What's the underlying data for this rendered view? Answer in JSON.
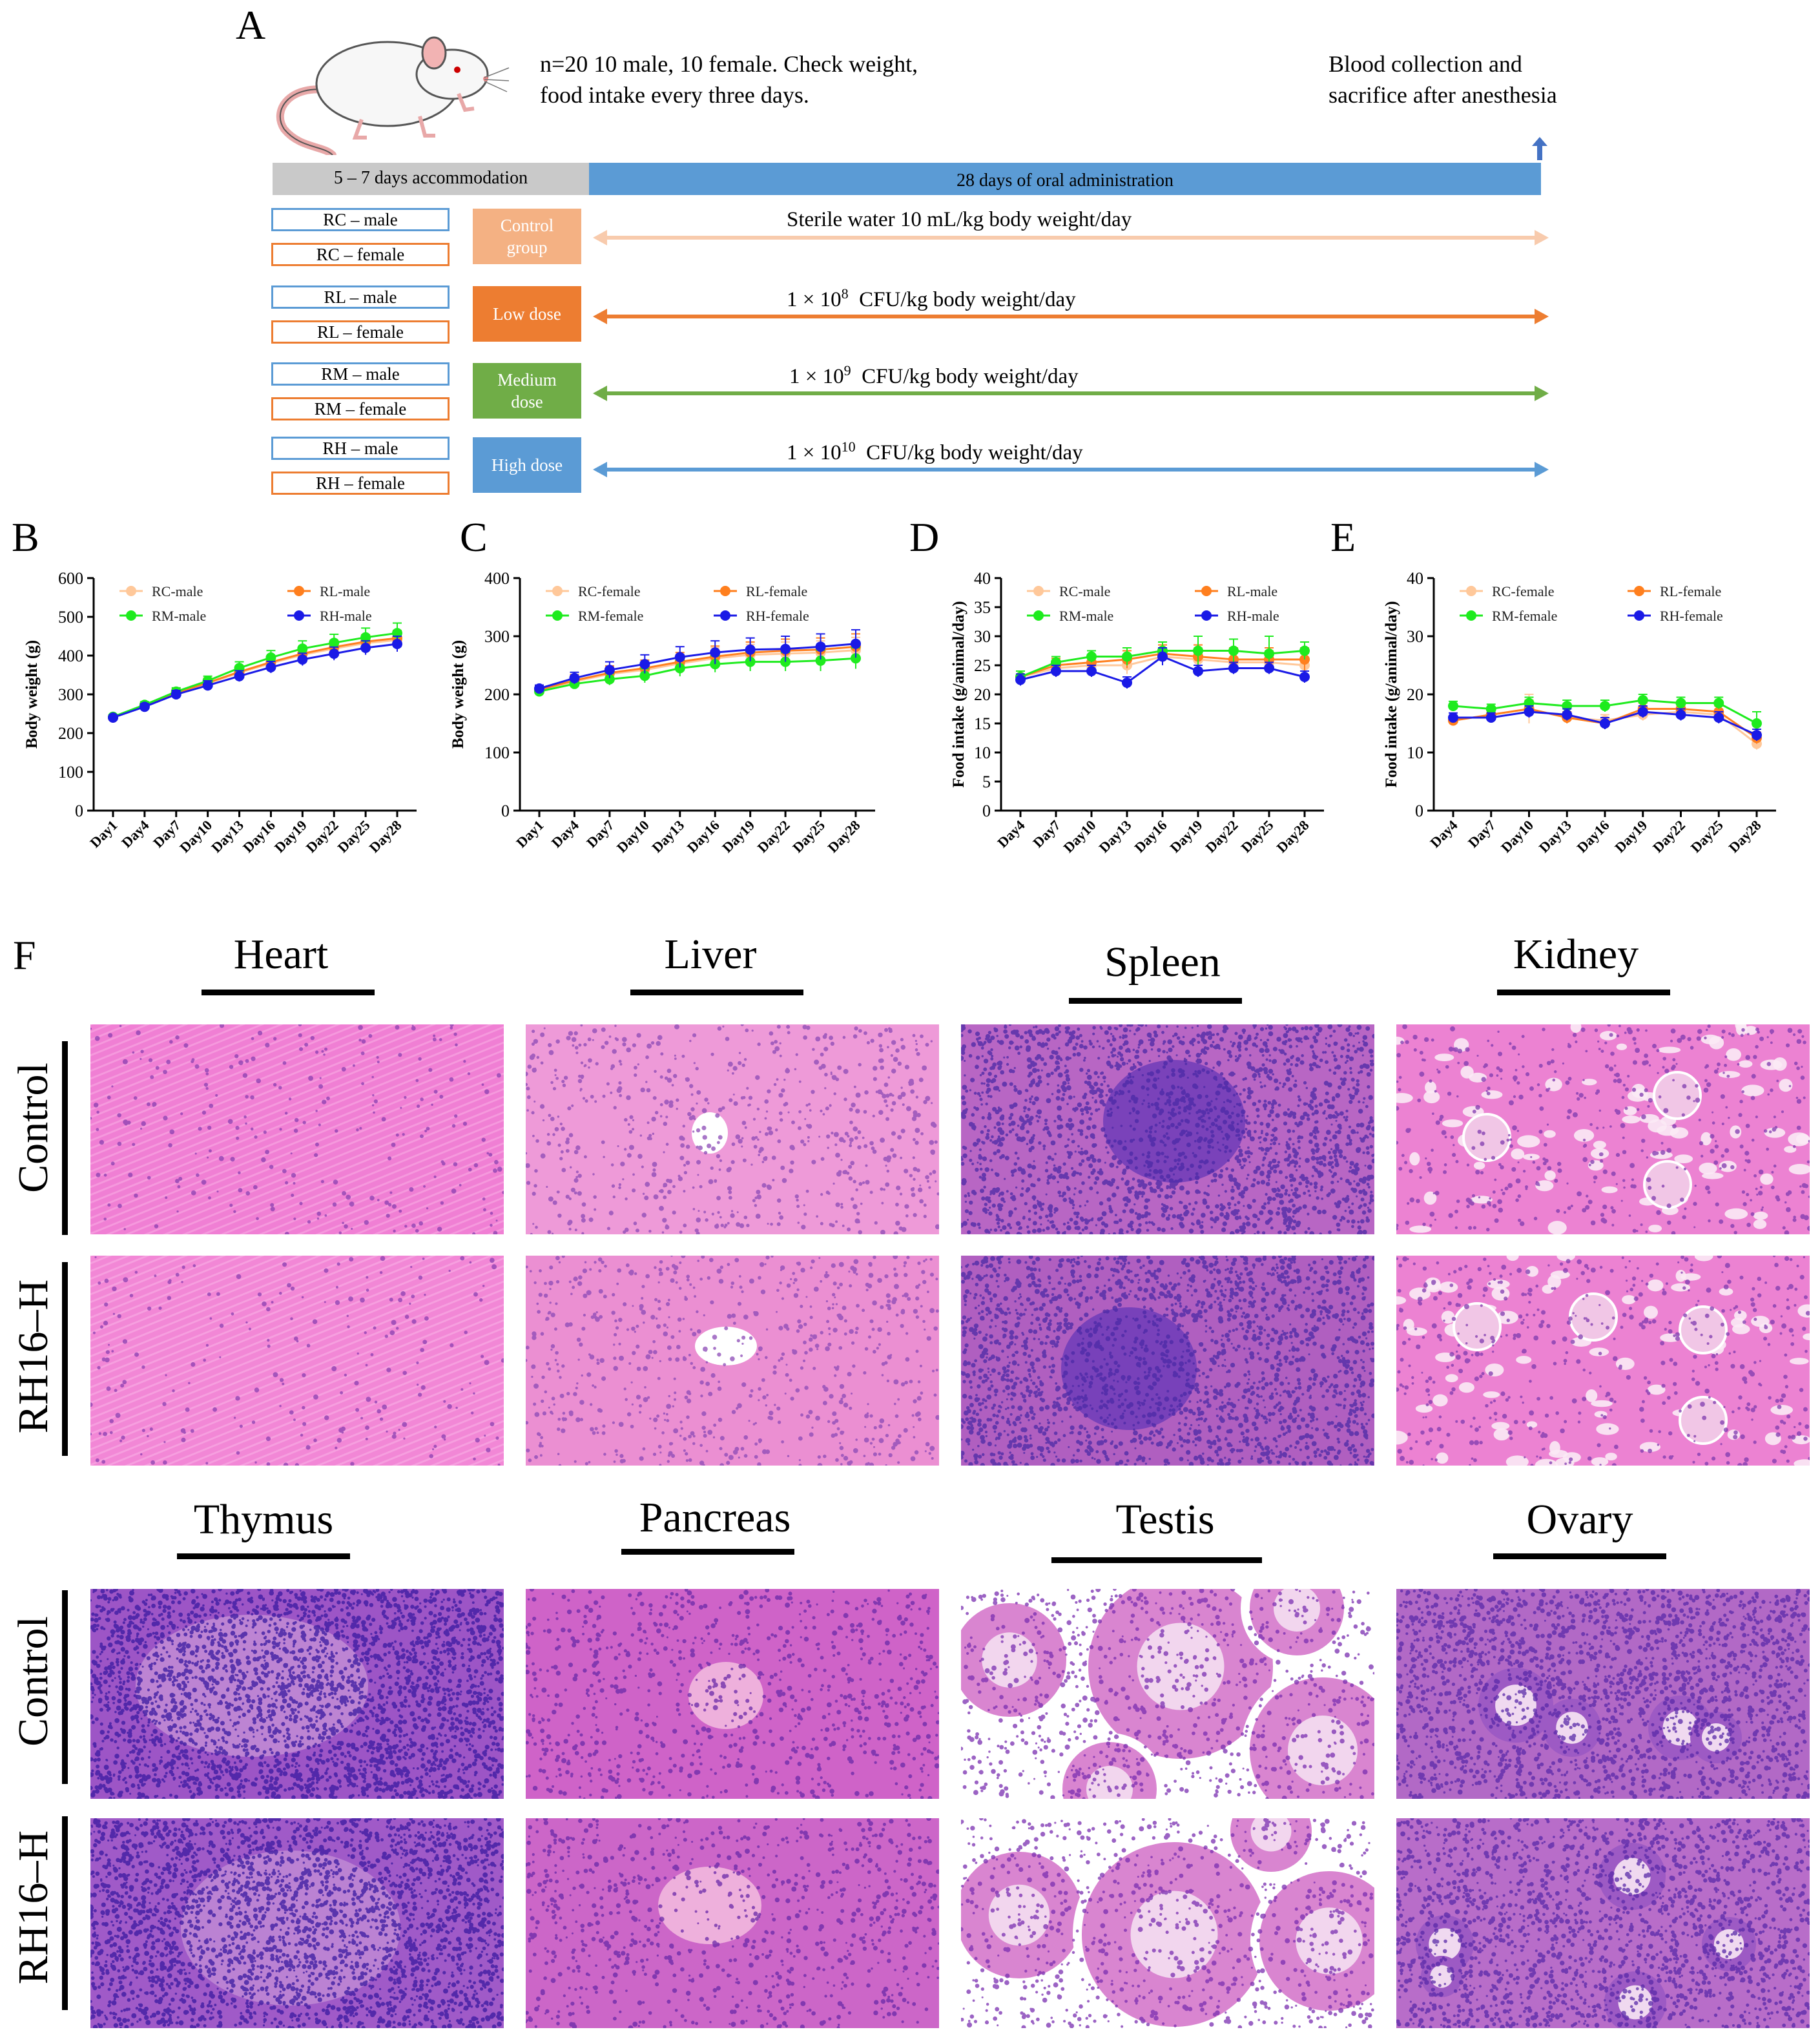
{
  "panel_labels": {
    "a": "A",
    "b": "B",
    "c": "C",
    "d": "D",
    "e": "E",
    "f": "F"
  },
  "schematic": {
    "study_note_line1": "n=20  10 male, 10 female. Check weight,",
    "study_note_line2": "food intake every three days.",
    "endpoint_line1": "Blood collection and",
    "endpoint_line2": "sacrifice after anesthesia",
    "phase_accommodation": "5 – 7 days  accommodation",
    "phase_administration": "28 days  of oral administration",
    "groups": [
      {
        "male": "RC – male",
        "female": "RC – female",
        "group_line1": "Control",
        "group_line2": "group",
        "color": "#F4B183",
        "dose": "Sterile water 10 mL/kg body weight/day",
        "dose_exp": ""
      },
      {
        "male": "RL – male",
        "female": "RL – female",
        "group_line1": "Low dose",
        "group_line2": "",
        "color": "#ED7D31",
        "dose": "1 × 10",
        "dose_exp": "8",
        "dose_suffix": "  CFU/kg body weight/day"
      },
      {
        "male": "RM – male",
        "female": "RM – female",
        "group_line1": "Medium",
        "group_line2": "dose",
        "color": "#70AD47",
        "dose": "1 × 10",
        "dose_exp": "9",
        "dose_suffix": "  CFU/kg body weight/day"
      },
      {
        "male": "RH – male",
        "female": "RH – female",
        "group_line1": "High dose",
        "group_line2": "",
        "color": "#5B9BD5",
        "dose": "1 × 10",
        "dose_exp": "10",
        "dose_suffix": "  CFU/kg body weight/day"
      }
    ],
    "colors": {
      "male_border": "#5B9BD5",
      "female_border": "#ED7D31",
      "accommodation_bar": "#C9C9C9",
      "administration_bar": "#5B9BD5",
      "arrow_up": "#4472C4"
    }
  },
  "series_colors": {
    "RC": "#FFC89A",
    "RL": "#FF7F1E",
    "RM": "#1EEB1E",
    "RH": "#1A1AE6"
  },
  "chart_data": [
    {
      "panel": "B",
      "type": "line",
      "ylabel": "Body weight (g)",
      "ylim": [
        0,
        600
      ],
      "yticks": [
        0,
        100,
        200,
        300,
        400,
        500,
        600
      ],
      "categories": [
        "Day1",
        "Day4",
        "Day7",
        "Day10",
        "Day13",
        "Day16",
        "Day19",
        "Day22",
        "Day25",
        "Day28"
      ],
      "legend": [
        "RC-male",
        "RL-male",
        "RM-male",
        "RH-male"
      ],
      "series": [
        {
          "name": "RC-male",
          "values": [
            240,
            270,
            303,
            328,
            356,
            380,
            402,
            418,
            432,
            440
          ],
          "err": [
            6,
            8,
            10,
            12,
            14,
            15,
            16,
            17,
            18,
            20
          ]
        },
        {
          "name": "RL-male",
          "values": [
            241,
            271,
            304,
            330,
            358,
            383,
            405,
            422,
            436,
            445
          ],
          "err": [
            6,
            8,
            10,
            12,
            14,
            15,
            16,
            17,
            18,
            20
          ]
        },
        {
          "name": "RM-male",
          "values": [
            242,
            273,
            307,
            335,
            368,
            395,
            418,
            433,
            447,
            458
          ],
          "err": [
            6,
            8,
            10,
            12,
            16,
            18,
            20,
            22,
            24,
            26
          ]
        },
        {
          "name": "RH-male",
          "values": [
            240,
            268,
            300,
            323,
            347,
            370,
            390,
            405,
            420,
            430
          ],
          "err": [
            6,
            8,
            10,
            12,
            14,
            15,
            16,
            17,
            18,
            20
          ]
        }
      ]
    },
    {
      "panel": "C",
      "type": "line",
      "ylabel": "Body weight (g)",
      "ylim": [
        0,
        400
      ],
      "yticks": [
        0,
        100,
        200,
        300,
        400
      ],
      "categories": [
        "Day1",
        "Day4",
        "Day7",
        "Day10",
        "Day13",
        "Day16",
        "Day19",
        "Day22",
        "Day25",
        "Day28"
      ],
      "legend": [
        "RC-female",
        "RL-female",
        "RM-female",
        "RH-female"
      ],
      "series": [
        {
          "name": "RC-female",
          "values": [
            207,
            222,
            235,
            242,
            253,
            262,
            268,
            270,
            272,
            276
          ],
          "err": [
            6,
            10,
            12,
            14,
            16,
            18,
            18,
            20,
            20,
            22
          ]
        },
        {
          "name": "RL-female",
          "values": [
            208,
            224,
            237,
            245,
            256,
            265,
            272,
            275,
            277,
            282
          ],
          "err": [
            6,
            10,
            12,
            14,
            16,
            18,
            18,
            20,
            20,
            22
          ]
        },
        {
          "name": "RM-female",
          "values": [
            205,
            218,
            226,
            232,
            245,
            252,
            256,
            256,
            258,
            262
          ],
          "err": [
            6,
            8,
            10,
            12,
            14,
            14,
            16,
            16,
            18,
            18
          ]
        },
        {
          "name": "RH-female",
          "values": [
            210,
            228,
            242,
            252,
            264,
            272,
            277,
            278,
            282,
            287
          ],
          "err": [
            6,
            10,
            14,
            16,
            18,
            20,
            20,
            22,
            22,
            24
          ]
        }
      ]
    },
    {
      "panel": "D",
      "type": "line",
      "ylabel": "Food intake (g/animal/day)",
      "ylim": [
        0,
        40
      ],
      "yticks": [
        0,
        5,
        10,
        15,
        20,
        25,
        30,
        35,
        40
      ],
      "categories": [
        "Day4",
        "Day7",
        "Day10",
        "Day13",
        "Day16",
        "Day19",
        "Day22",
        "Day25",
        "Day28"
      ],
      "legend": [
        "RC-male",
        "RL-male",
        "RM-male",
        "RH-male"
      ],
      "series": [
        {
          "name": "RC-male",
          "values": [
            23,
            24.5,
            25,
            25,
            26.5,
            26,
            25.5,
            25.5,
            25
          ],
          "err": [
            1,
            1.2,
            1.2,
            1.5,
            1.5,
            2,
            2,
            2,
            2
          ]
        },
        {
          "name": "RL-male",
          "values": [
            23,
            25,
            25.5,
            26,
            27,
            26.5,
            26,
            26,
            26
          ],
          "err": [
            1,
            1.2,
            1.2,
            1.5,
            1.5,
            2,
            2,
            2,
            2
          ]
        },
        {
          "name": "RM-male",
          "values": [
            23,
            25.5,
            26.5,
            26.5,
            27.5,
            27.5,
            27.5,
            27,
            27.5
          ],
          "err": [
            1,
            1,
            1,
            1.5,
            1.5,
            2.5,
            2,
            3,
            1.5
          ]
        },
        {
          "name": "RH-male",
          "values": [
            22.5,
            24,
            24,
            22,
            26.5,
            24,
            24.5,
            24.5,
            23
          ],
          "err": [
            1,
            1,
            1,
            1,
            1.5,
            1,
            1,
            1,
            1
          ]
        }
      ]
    },
    {
      "panel": "E",
      "type": "line",
      "ylabel": "Food intake (g/animal/day)",
      "ylim": [
        0,
        40
      ],
      "yticks": [
        0,
        10,
        20,
        30,
        40
      ],
      "categories": [
        "Day4",
        "Day7",
        "Day10",
        "Day13",
        "Day16",
        "Day19",
        "Day22",
        "Day25",
        "Day28"
      ],
      "legend": [
        "RC-female",
        "RL-female",
        "RM-female",
        "RH-female"
      ],
      "series": [
        {
          "name": "RC-female",
          "values": [
            15.5,
            16.5,
            17.5,
            16,
            15.5,
            16.5,
            17,
            16.5,
            11.5
          ],
          "err": [
            0.8,
            0.8,
            2.5,
            1,
            1,
            1,
            1,
            1,
            1
          ]
        },
        {
          "name": "RL-female",
          "values": [
            15.5,
            16.5,
            17.5,
            16,
            15,
            17.5,
            17.5,
            17,
            12.5
          ],
          "err": [
            0.8,
            0.8,
            1.5,
            1,
            1,
            1,
            1,
            1,
            1
          ]
        },
        {
          "name": "RM-female",
          "values": [
            18,
            17.5,
            18.5,
            18,
            18,
            19,
            18.5,
            18.5,
            15
          ],
          "err": [
            0.8,
            0.8,
            1,
            1,
            1,
            1,
            1,
            1,
            2
          ]
        },
        {
          "name": "RH-female",
          "values": [
            16,
            16,
            17,
            16.5,
            15,
            17,
            16.5,
            16,
            13
          ],
          "err": [
            0.8,
            0.8,
            1,
            1,
            1,
            1,
            1,
            1,
            1
          ]
        }
      ]
    }
  ],
  "histology": {
    "top_titles": [
      "Heart",
      "Liver",
      "Spleen",
      "Kidney"
    ],
    "bottom_titles": [
      "Thymus",
      "Pancreas",
      "Testis",
      "Ovary"
    ],
    "row_labels": [
      "Control",
      "RH16–H",
      "Control",
      "RH16–H"
    ]
  }
}
